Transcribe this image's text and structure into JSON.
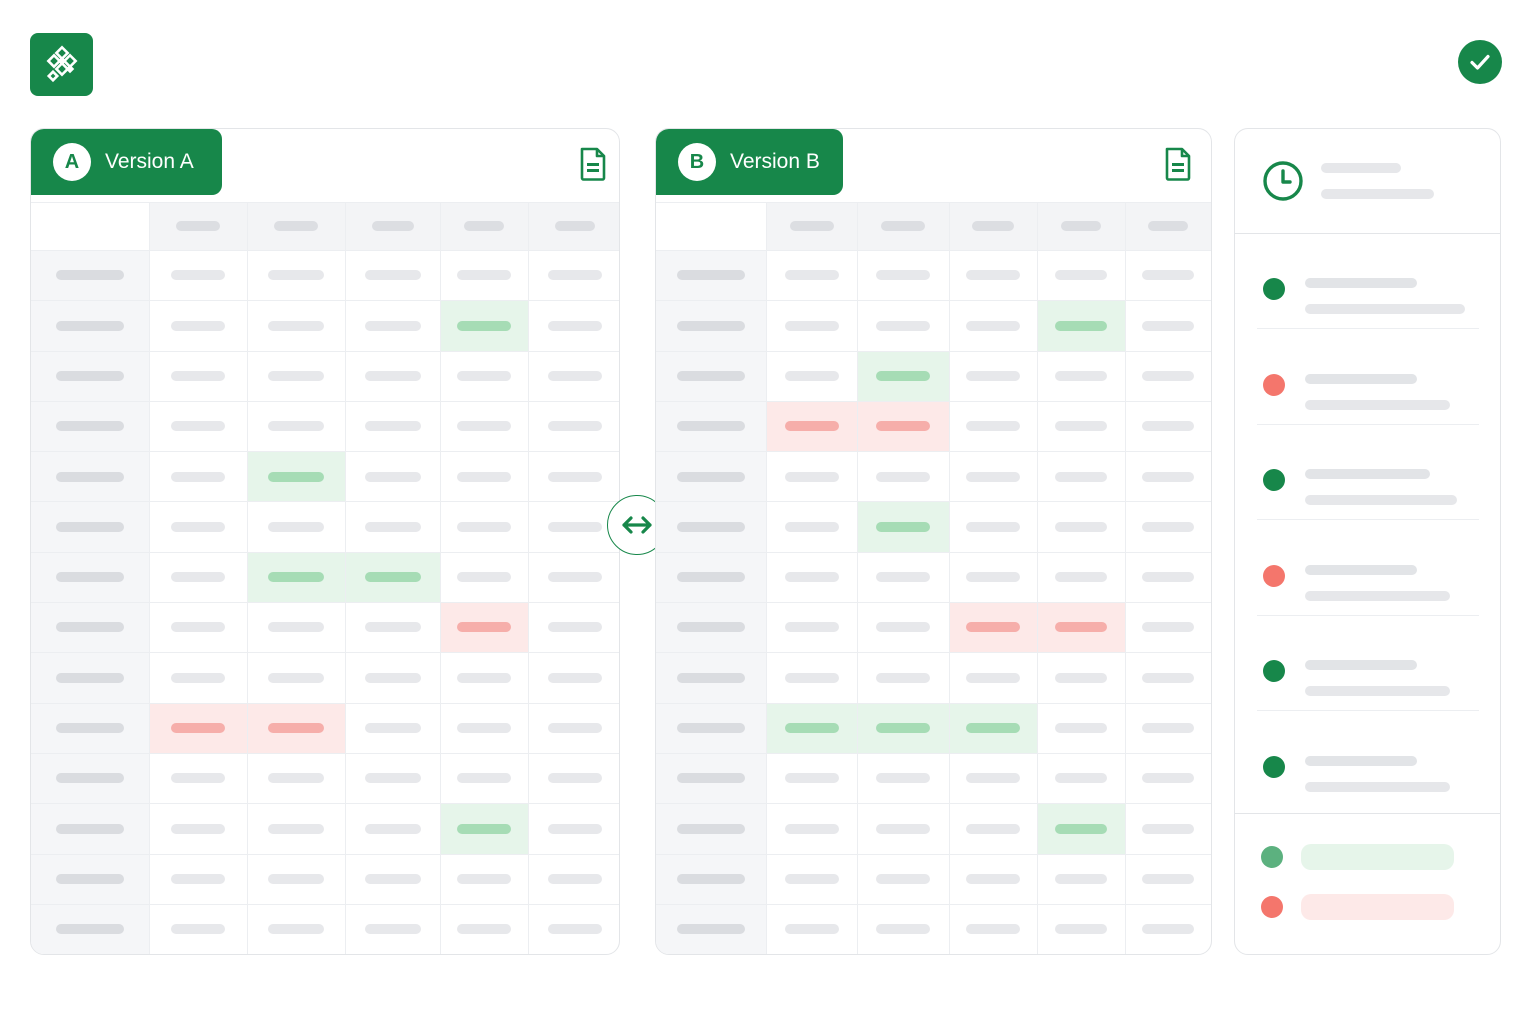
{
  "version_a": {
    "label": "Version A",
    "badge": "A"
  },
  "version_b": {
    "label": "Version B",
    "badge": "B"
  },
  "colors": {
    "brand": "#17874a",
    "added": "#e6f5ea",
    "removed": "#fde9e8",
    "added_mark": "#a6dcb5",
    "removed_mark": "#f6aeaa"
  },
  "icons": {
    "logo": "diamond-grid-logo-icon",
    "done": "checkmark-icon",
    "file": "spreadsheet-file-icon",
    "swap": "swap-arrows-icon",
    "history": "clock-icon"
  },
  "grid": {
    "columns": 5,
    "rows": 14
  },
  "diff_a": {
    "added": [
      [
        1,
        3
      ],
      [
        4,
        1
      ],
      [
        6,
        1
      ],
      [
        6,
        2
      ],
      [
        11,
        3
      ]
    ],
    "removed": [
      [
        7,
        3
      ],
      [
        9,
        0
      ],
      [
        9,
        1
      ]
    ]
  },
  "diff_b": {
    "added": [
      [
        1,
        3
      ],
      [
        2,
        1
      ],
      [
        5,
        1
      ],
      [
        9,
        0
      ],
      [
        9,
        1
      ],
      [
        9,
        2
      ],
      [
        11,
        3
      ]
    ],
    "removed": [
      [
        3,
        0
      ],
      [
        3,
        1
      ],
      [
        7,
        2
      ],
      [
        7,
        3
      ]
    ]
  },
  "changes": [
    "added",
    "removed",
    "added",
    "removed",
    "added",
    "added"
  ],
  "legend": [
    "added",
    "removed"
  ]
}
